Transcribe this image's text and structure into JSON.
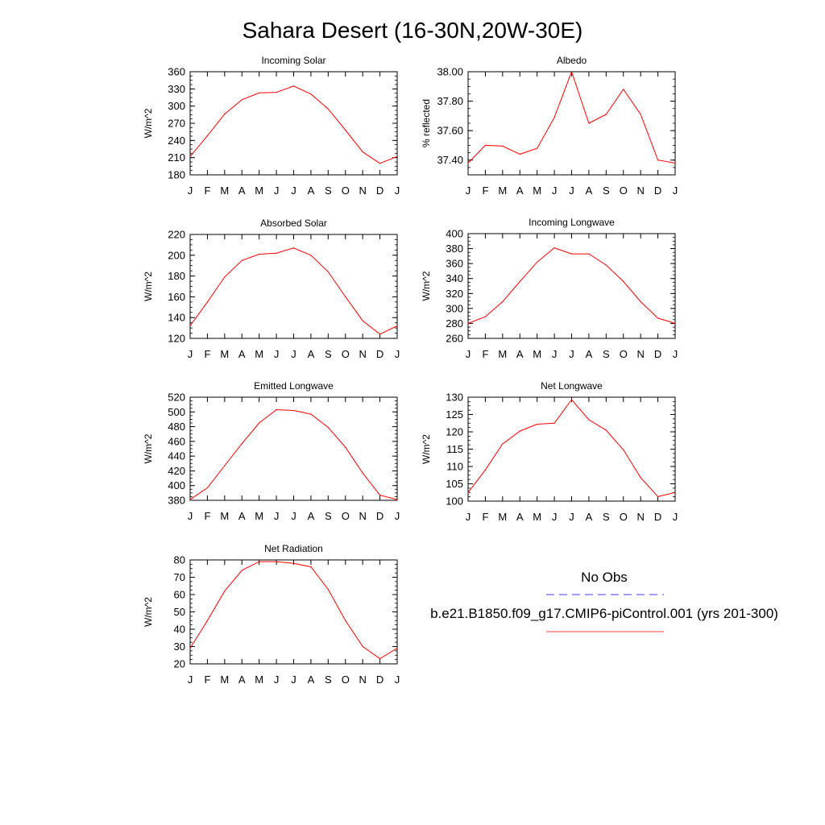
{
  "title": "Sahara Desert (16-30N,20W-30E)",
  "months": [
    "J",
    "F",
    "M",
    "A",
    "M",
    "J",
    "J",
    "A",
    "S",
    "O",
    "N",
    "D",
    "J"
  ],
  "line_color": "#ff0000",
  "obs_color": "#0000ff",
  "legend": {
    "obs_label": "No Obs",
    "model_label": "b.e21.B1850.f09_g17.CMIP6-piControl.001 (yrs 201-300)"
  },
  "chart_data": [
    {
      "type": "line",
      "title": "Incoming Solar",
      "ylabel": "W/m^2",
      "ylim": [
        180,
        360
      ],
      "yticks": [
        180,
        210,
        240,
        270,
        300,
        330,
        360
      ],
      "ytick_labels": [
        "180",
        "210",
        "240",
        "270",
        "300",
        "330",
        "360"
      ],
      "values": [
        212,
        248,
        286,
        311,
        323,
        324,
        335,
        321,
        295,
        258,
        220,
        200,
        212
      ]
    },
    {
      "type": "line",
      "title": "Albedo",
      "ylabel": "% reflected",
      "ylim": [
        37.3,
        38.0
      ],
      "yticks": [
        37.4,
        37.6,
        37.8,
        38.0
      ],
      "ytick_labels": [
        "37.40",
        "37.60",
        "37.80",
        "38.00"
      ],
      "values": [
        37.38,
        37.5,
        37.495,
        37.44,
        37.48,
        37.69,
        38.0,
        37.65,
        37.71,
        37.88,
        37.71,
        37.4,
        37.38
      ]
    },
    {
      "type": "line",
      "title": "Absorbed Solar",
      "ylabel": "W/m^2",
      "ylim": [
        120,
        220
      ],
      "yticks": [
        120,
        140,
        160,
        180,
        200,
        220
      ],
      "ytick_labels": [
        "120",
        "140",
        "160",
        "180",
        "200",
        "220"
      ],
      "values": [
        132,
        155,
        179,
        195,
        201,
        202,
        207,
        200,
        184,
        160,
        137,
        124,
        132
      ]
    },
    {
      "type": "line",
      "title": "Incoming Longwave",
      "ylabel": "W/m^2",
      "ylim": [
        260,
        400
      ],
      "yticks": [
        260,
        280,
        300,
        320,
        340,
        360,
        380,
        400
      ],
      "ytick_labels": [
        "260",
        "280",
        "300",
        "320",
        "340",
        "360",
        "380",
        "400"
      ],
      "values": [
        280,
        289,
        309,
        336,
        362,
        381,
        373,
        373,
        358,
        336,
        309,
        287,
        280
      ]
    },
    {
      "type": "line",
      "title": "Emitted Longwave",
      "ylabel": "W/m^2",
      "ylim": [
        380,
        520
      ],
      "yticks": [
        380,
        400,
        420,
        440,
        460,
        480,
        500,
        520
      ],
      "ytick_labels": [
        "380",
        "400",
        "420",
        "440",
        "460",
        "480",
        "500",
        "520"
      ],
      "values": [
        381,
        397,
        427,
        457,
        485,
        503,
        502,
        497,
        479,
        452,
        417,
        387,
        381
      ]
    },
    {
      "type": "line",
      "title": "Net Longwave",
      "ylabel": "W/m^2",
      "ylim": [
        100,
        130
      ],
      "yticks": [
        100,
        105,
        110,
        115,
        120,
        125,
        130
      ],
      "ytick_labels": [
        "100",
        "105",
        "110",
        "115",
        "120",
        "125",
        "130"
      ],
      "values": [
        102.5,
        109,
        116.5,
        120.2,
        122.2,
        122.5,
        129.3,
        123.5,
        120.5,
        114.8,
        106.8,
        101.3,
        102.5
      ]
    },
    {
      "type": "line",
      "title": "Net Radiation",
      "ylabel": "W/m^2",
      "ylim": [
        20,
        80
      ],
      "yticks": [
        20,
        30,
        40,
        50,
        60,
        70,
        80
      ],
      "ytick_labels": [
        "20",
        "30",
        "40",
        "50",
        "60",
        "70",
        "80"
      ],
      "values": [
        29,
        45,
        62,
        74,
        79,
        79,
        78,
        76,
        63,
        45,
        30,
        23,
        29
      ]
    }
  ]
}
